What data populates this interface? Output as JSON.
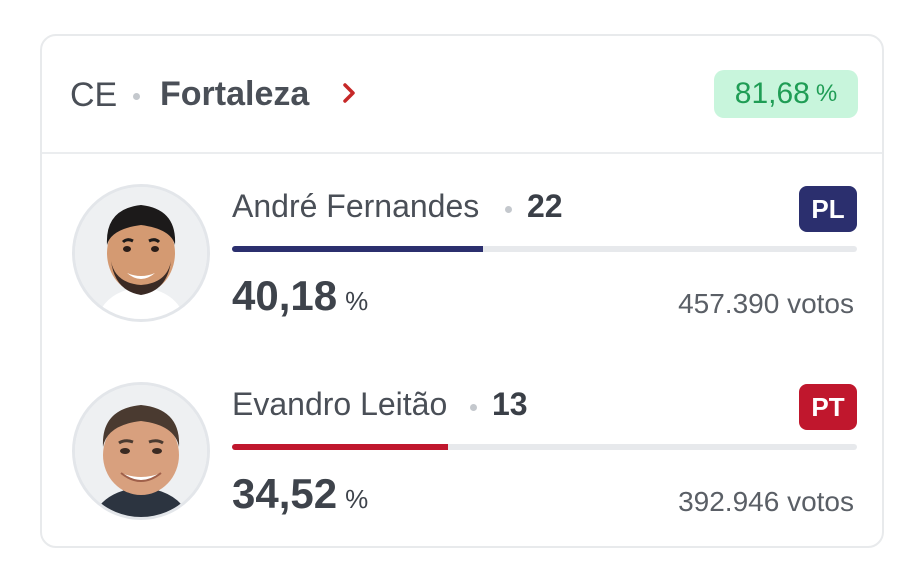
{
  "header": {
    "state": "CE",
    "city": "Fortaleza",
    "apuradas_value": "81,68",
    "apuradas_unit": "%",
    "colors": {
      "badge_bg": "#c8f5dc",
      "badge_text": "#1f9d55",
      "chevron": "#c62828"
    },
    "chevron_icon": "chevron-right-icon"
  },
  "candidates": [
    {
      "name": "André Fernandes",
      "number": "22",
      "party": "PL",
      "party_color": "#2b2f6e",
      "percent": "40,18",
      "percent_unit": "%",
      "percent_value": 40.18,
      "votes": "457.390 votos",
      "photo_icon": "candidate-photo-icon"
    },
    {
      "name": "Evandro Leitão",
      "number": "13",
      "party": "PT",
      "party_color": "#c0172d",
      "percent": "34,52",
      "percent_unit": "%",
      "percent_value": 34.52,
      "votes": "392.946 votos",
      "photo_icon": "candidate-photo-icon"
    }
  ]
}
